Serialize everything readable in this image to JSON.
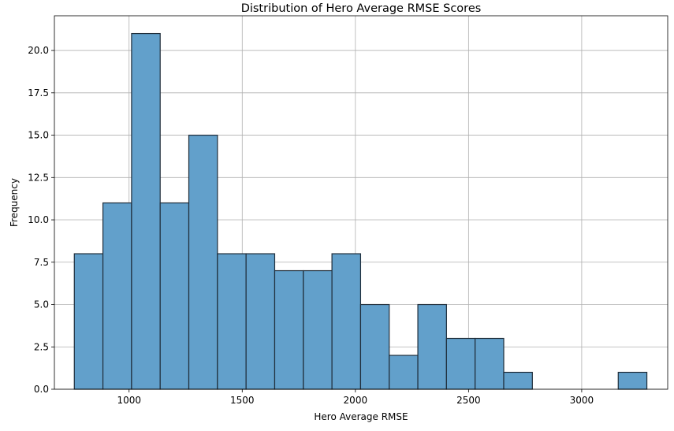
{
  "chart_data": {
    "type": "bar",
    "subtype": "histogram",
    "title": "Distribution of Hero Average RMSE Scores",
    "xlabel": "Hero Average RMSE",
    "ylabel": "Frequency",
    "xlim": [
      670,
      3380
    ],
    "ylim": [
      0,
      22.05
    ],
    "grid": true,
    "bar_color": "#62a0cb",
    "edge_color": "#1f2d3a",
    "bin_edges": [
      758,
      884.5,
      1011,
      1137.5,
      1264,
      1390.5,
      1517,
      1643.5,
      1770,
      1896.5,
      2023,
      2149.5,
      2276,
      2402.5,
      2529,
      2655.5,
      2782,
      2908.5,
      3035,
      3161.5,
      3288
    ],
    "counts": [
      8,
      11,
      21,
      11,
      15,
      8,
      8,
      7,
      7,
      8,
      5,
      2,
      5,
      3,
      3,
      1,
      0,
      0,
      0,
      1
    ],
    "x_ticks": [
      1000,
      1500,
      2000,
      2500,
      3000
    ],
    "x_tick_labels": [
      "1000",
      "1500",
      "2000",
      "2500",
      "3000"
    ],
    "y_ticks": [
      0,
      2.5,
      5,
      7.5,
      10,
      12.5,
      15,
      17.5,
      20
    ],
    "y_tick_labels": [
      "0.0",
      "2.5",
      "5.0",
      "7.5",
      "10.0",
      "12.5",
      "15.0",
      "17.5",
      "20.0"
    ]
  }
}
